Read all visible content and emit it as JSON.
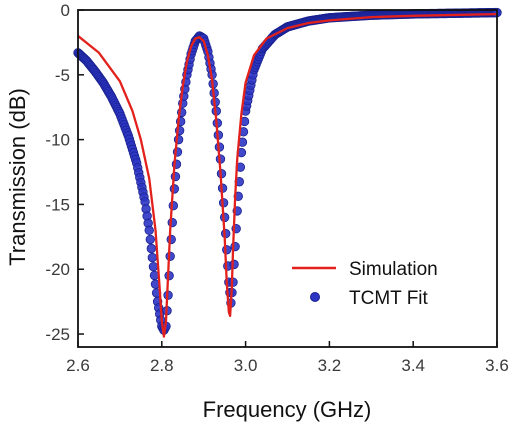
{
  "chart_data": {
    "type": "line",
    "xlabel": "Frequency (GHz)",
    "ylabel": "Transmission (dB)",
    "xlim": [
      2.6,
      3.6
    ],
    "ylim": [
      -26,
      0
    ],
    "xticks": [
      "2.6",
      "2.8",
      "3.0",
      "3.2",
      "3.4",
      "3.6"
    ],
    "yticks": [
      "0",
      "-5",
      "-10",
      "-15",
      "-20",
      "-25"
    ],
    "grid": false,
    "legend_position": "lower-right",
    "series": [
      {
        "name": "Simulation",
        "style": "line",
        "color": "#e3211c",
        "x": [
          2.6,
          2.65,
          2.7,
          2.73,
          2.75,
          2.77,
          2.785,
          2.795,
          2.8,
          2.805,
          2.81,
          2.815,
          2.82,
          2.83,
          2.84,
          2.85,
          2.86,
          2.87,
          2.88,
          2.89,
          2.9,
          2.91,
          2.92,
          2.93,
          2.94,
          2.95,
          2.955,
          2.96,
          2.963,
          2.967,
          2.97,
          2.975,
          2.98,
          2.99,
          3.0,
          3.02,
          3.05,
          3.1,
          3.15,
          3.2,
          3.3,
          3.4,
          3.5,
          3.6
        ],
        "y": [
          -2.0,
          -3.3,
          -5.5,
          -7.8,
          -10.0,
          -13.0,
          -17.0,
          -21.5,
          -24.0,
          -25.2,
          -24.0,
          -20.5,
          -17.0,
          -12.0,
          -8.5,
          -5.9,
          -4.0,
          -2.8,
          -2.2,
          -2.1,
          -2.4,
          -3.5,
          -5.4,
          -8.5,
          -12.5,
          -17.5,
          -21.0,
          -23.3,
          -23.6,
          -21.5,
          -18.5,
          -14.5,
          -11.5,
          -8.0,
          -5.6,
          -3.5,
          -2.2,
          -1.4,
          -1.0,
          -0.8,
          -0.55,
          -0.45,
          -0.38,
          -0.32
        ]
      },
      {
        "name": "TCMT Fit",
        "style": "markers",
        "color": "#2c35c4",
        "x": [
          2.6,
          2.62,
          2.64,
          2.66,
          2.68,
          2.7,
          2.72,
          2.74,
          2.76,
          2.77,
          2.78,
          2.79,
          2.8,
          2.805,
          2.81,
          2.815,
          2.82,
          2.83,
          2.84,
          2.85,
          2.86,
          2.87,
          2.88,
          2.89,
          2.9,
          2.91,
          2.92,
          2.93,
          2.94,
          2.95,
          2.96,
          2.965,
          2.97,
          2.98,
          2.99,
          3.0,
          3.02,
          3.04,
          3.07,
          3.1,
          3.15,
          3.2,
          3.3,
          3.4,
          3.5,
          3.6
        ],
        "y": [
          -3.3,
          -3.9,
          -4.7,
          -5.6,
          -6.7,
          -8.0,
          -9.7,
          -11.8,
          -14.8,
          -17.0,
          -19.8,
          -22.5,
          -24.4,
          -24.7,
          -24.4,
          -22.0,
          -19.0,
          -13.8,
          -10.0,
          -7.2,
          -5.0,
          -3.4,
          -2.4,
          -2.0,
          -2.2,
          -3.2,
          -5.0,
          -7.8,
          -11.5,
          -16.0,
          -21.0,
          -22.6,
          -21.0,
          -15.5,
          -11.0,
          -7.8,
          -4.6,
          -3.0,
          -1.9,
          -1.3,
          -0.85,
          -0.6,
          -0.4,
          -0.3,
          -0.25,
          -0.2
        ]
      }
    ]
  }
}
